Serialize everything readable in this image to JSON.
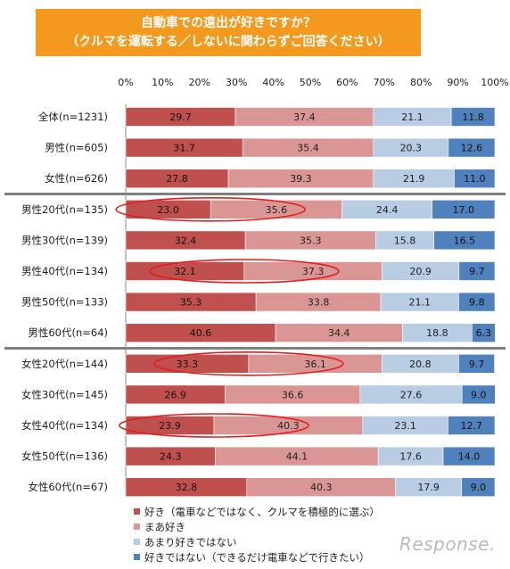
{
  "title": {
    "line1": "自動車での遠出が好きですか？",
    "line2": "（クルマを運転する／しないに関わらずご回答ください）"
  },
  "watermark": "Response.",
  "chart_data": {
    "type": "bar",
    "orientation": "horizontal",
    "stacked": true,
    "xlim": [
      0,
      100
    ],
    "xticks": [
      "0%",
      "10%",
      "20%",
      "30%",
      "40%",
      "50%",
      "60%",
      "70%",
      "80%",
      "90%",
      "100%"
    ],
    "categories": [
      "全体(n=1231)",
      "男性(n=605)",
      "女性(n=626)",
      "男性20代(n=135)",
      "男性30代(n=139)",
      "男性40代(n=134)",
      "男性50代(n=133)",
      "男性60代(n=64)",
      "女性20代(n=144)",
      "女性30代(n=145)",
      "女性40代(n=134)",
      "女性50代(n=136)",
      "女性60代(n=67)"
    ],
    "series": [
      {
        "name": "好き（電車などではなく、クルマを積極的に選ぶ）",
        "color": "#c0504d",
        "values": [
          29.7,
          31.7,
          27.8,
          23.0,
          32.4,
          32.1,
          35.3,
          40.6,
          33.3,
          26.9,
          23.9,
          24.3,
          32.8
        ]
      },
      {
        "name": "まあ好き",
        "color": "#da9694",
        "values": [
          37.4,
          35.4,
          39.3,
          35.6,
          35.3,
          37.3,
          33.8,
          34.4,
          36.1,
          36.6,
          40.3,
          44.1,
          40.3
        ]
      },
      {
        "name": "あまり好きではない",
        "color": "#b8cce4",
        "values": [
          21.1,
          20.3,
          21.9,
          24.4,
          15.8,
          20.9,
          21.1,
          18.8,
          20.8,
          27.6,
          23.1,
          17.6,
          17.9
        ]
      },
      {
        "name": "好きではない（できるだけ電車などで行きたい）",
        "color": "#4f81bd",
        "values": [
          11.8,
          12.6,
          11.0,
          17.0,
          16.5,
          9.7,
          9.8,
          6.3,
          9.7,
          9.0,
          12.7,
          14.0,
          9.0
        ]
      }
    ],
    "group_separators_after": [
      "女性(n=626)",
      "男性60代(n=64)"
    ],
    "highlighted_rows": [
      "男性20代(n=135)",
      "男性40代(n=134)",
      "女性20代(n=144)",
      "女性40代(n=134)"
    ]
  }
}
